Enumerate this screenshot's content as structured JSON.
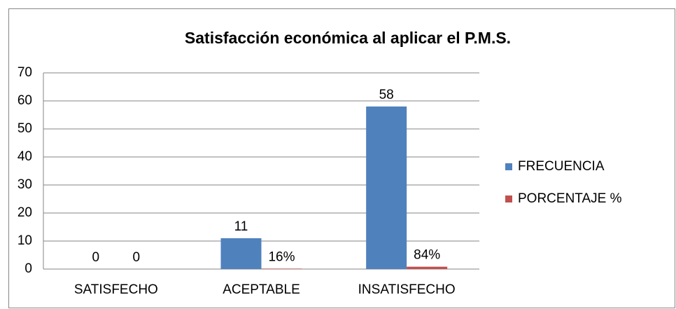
{
  "chart_data": {
    "type": "bar",
    "title": "Satisfacción económica al aplicar el P.M.S.",
    "categories": [
      "SATISFECHO",
      "ACEPTABLE",
      "INSATISFECHO"
    ],
    "series": [
      {
        "name": "FRECUENCIA",
        "color": "#4f81bd",
        "values": [
          0,
          11,
          58
        ]
      },
      {
        "name": "PORCENTAJE %",
        "color": "#c0504d",
        "values": [
          0,
          0.16,
          0.84
        ],
        "value_labels": [
          "0",
          "16%",
          "84%"
        ]
      }
    ],
    "ylim": [
      0,
      70
    ],
    "yticks": [
      0,
      10,
      20,
      30,
      40,
      50,
      60,
      70
    ],
    "grid": true,
    "legend": "right"
  }
}
